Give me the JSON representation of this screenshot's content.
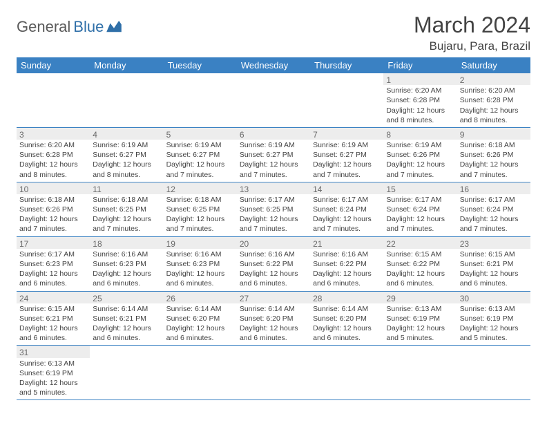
{
  "logo": {
    "text1": "General",
    "text2": "Blue"
  },
  "title": "March 2024",
  "location": "Bujaru, Para, Brazil",
  "colors": {
    "header_bg": "#3a81c3",
    "header_text": "#ffffff",
    "shaded_cell": "#ededed",
    "border": "#3a81c3",
    "body_text": "#434343",
    "logo_blue": "#2f6fa8"
  },
  "weekdays": [
    "Sunday",
    "Monday",
    "Tuesday",
    "Wednesday",
    "Thursday",
    "Friday",
    "Saturday"
  ],
  "weeks": [
    [
      null,
      null,
      null,
      null,
      null,
      {
        "d": "1",
        "sr": "6:20 AM",
        "ss": "6:28 PM",
        "dl": "12 hours and 8 minutes."
      },
      {
        "d": "2",
        "sr": "6:20 AM",
        "ss": "6:28 PM",
        "dl": "12 hours and 8 minutes."
      }
    ],
    [
      {
        "d": "3",
        "sr": "6:20 AM",
        "ss": "6:28 PM",
        "dl": "12 hours and 8 minutes."
      },
      {
        "d": "4",
        "sr": "6:19 AM",
        "ss": "6:27 PM",
        "dl": "12 hours and 8 minutes."
      },
      {
        "d": "5",
        "sr": "6:19 AM",
        "ss": "6:27 PM",
        "dl": "12 hours and 7 minutes."
      },
      {
        "d": "6",
        "sr": "6:19 AM",
        "ss": "6:27 PM",
        "dl": "12 hours and 7 minutes."
      },
      {
        "d": "7",
        "sr": "6:19 AM",
        "ss": "6:27 PM",
        "dl": "12 hours and 7 minutes."
      },
      {
        "d": "8",
        "sr": "6:19 AM",
        "ss": "6:26 PM",
        "dl": "12 hours and 7 minutes."
      },
      {
        "d": "9",
        "sr": "6:18 AM",
        "ss": "6:26 PM",
        "dl": "12 hours and 7 minutes."
      }
    ],
    [
      {
        "d": "10",
        "sr": "6:18 AM",
        "ss": "6:26 PM",
        "dl": "12 hours and 7 minutes."
      },
      {
        "d": "11",
        "sr": "6:18 AM",
        "ss": "6:25 PM",
        "dl": "12 hours and 7 minutes."
      },
      {
        "d": "12",
        "sr": "6:18 AM",
        "ss": "6:25 PM",
        "dl": "12 hours and 7 minutes."
      },
      {
        "d": "13",
        "sr": "6:17 AM",
        "ss": "6:25 PM",
        "dl": "12 hours and 7 minutes."
      },
      {
        "d": "14",
        "sr": "6:17 AM",
        "ss": "6:24 PM",
        "dl": "12 hours and 7 minutes."
      },
      {
        "d": "15",
        "sr": "6:17 AM",
        "ss": "6:24 PM",
        "dl": "12 hours and 7 minutes."
      },
      {
        "d": "16",
        "sr": "6:17 AM",
        "ss": "6:24 PM",
        "dl": "12 hours and 7 minutes."
      }
    ],
    [
      {
        "d": "17",
        "sr": "6:17 AM",
        "ss": "6:23 PM",
        "dl": "12 hours and 6 minutes."
      },
      {
        "d": "18",
        "sr": "6:16 AM",
        "ss": "6:23 PM",
        "dl": "12 hours and 6 minutes."
      },
      {
        "d": "19",
        "sr": "6:16 AM",
        "ss": "6:23 PM",
        "dl": "12 hours and 6 minutes."
      },
      {
        "d": "20",
        "sr": "6:16 AM",
        "ss": "6:22 PM",
        "dl": "12 hours and 6 minutes."
      },
      {
        "d": "21",
        "sr": "6:16 AM",
        "ss": "6:22 PM",
        "dl": "12 hours and 6 minutes."
      },
      {
        "d": "22",
        "sr": "6:15 AM",
        "ss": "6:22 PM",
        "dl": "12 hours and 6 minutes."
      },
      {
        "d": "23",
        "sr": "6:15 AM",
        "ss": "6:21 PM",
        "dl": "12 hours and 6 minutes."
      }
    ],
    [
      {
        "d": "24",
        "sr": "6:15 AM",
        "ss": "6:21 PM",
        "dl": "12 hours and 6 minutes."
      },
      {
        "d": "25",
        "sr": "6:14 AM",
        "ss": "6:21 PM",
        "dl": "12 hours and 6 minutes."
      },
      {
        "d": "26",
        "sr": "6:14 AM",
        "ss": "6:20 PM",
        "dl": "12 hours and 6 minutes."
      },
      {
        "d": "27",
        "sr": "6:14 AM",
        "ss": "6:20 PM",
        "dl": "12 hours and 6 minutes."
      },
      {
        "d": "28",
        "sr": "6:14 AM",
        "ss": "6:20 PM",
        "dl": "12 hours and 6 minutes."
      },
      {
        "d": "29",
        "sr": "6:13 AM",
        "ss": "6:19 PM",
        "dl": "12 hours and 5 minutes."
      },
      {
        "d": "30",
        "sr": "6:13 AM",
        "ss": "6:19 PM",
        "dl": "12 hours and 5 minutes."
      }
    ],
    [
      {
        "d": "31",
        "sr": "6:13 AM",
        "ss": "6:19 PM",
        "dl": "12 hours and 5 minutes."
      },
      null,
      null,
      null,
      null,
      null,
      null
    ]
  ],
  "labels": {
    "sunrise": "Sunrise:",
    "sunset": "Sunset:",
    "daylight": "Daylight:"
  }
}
